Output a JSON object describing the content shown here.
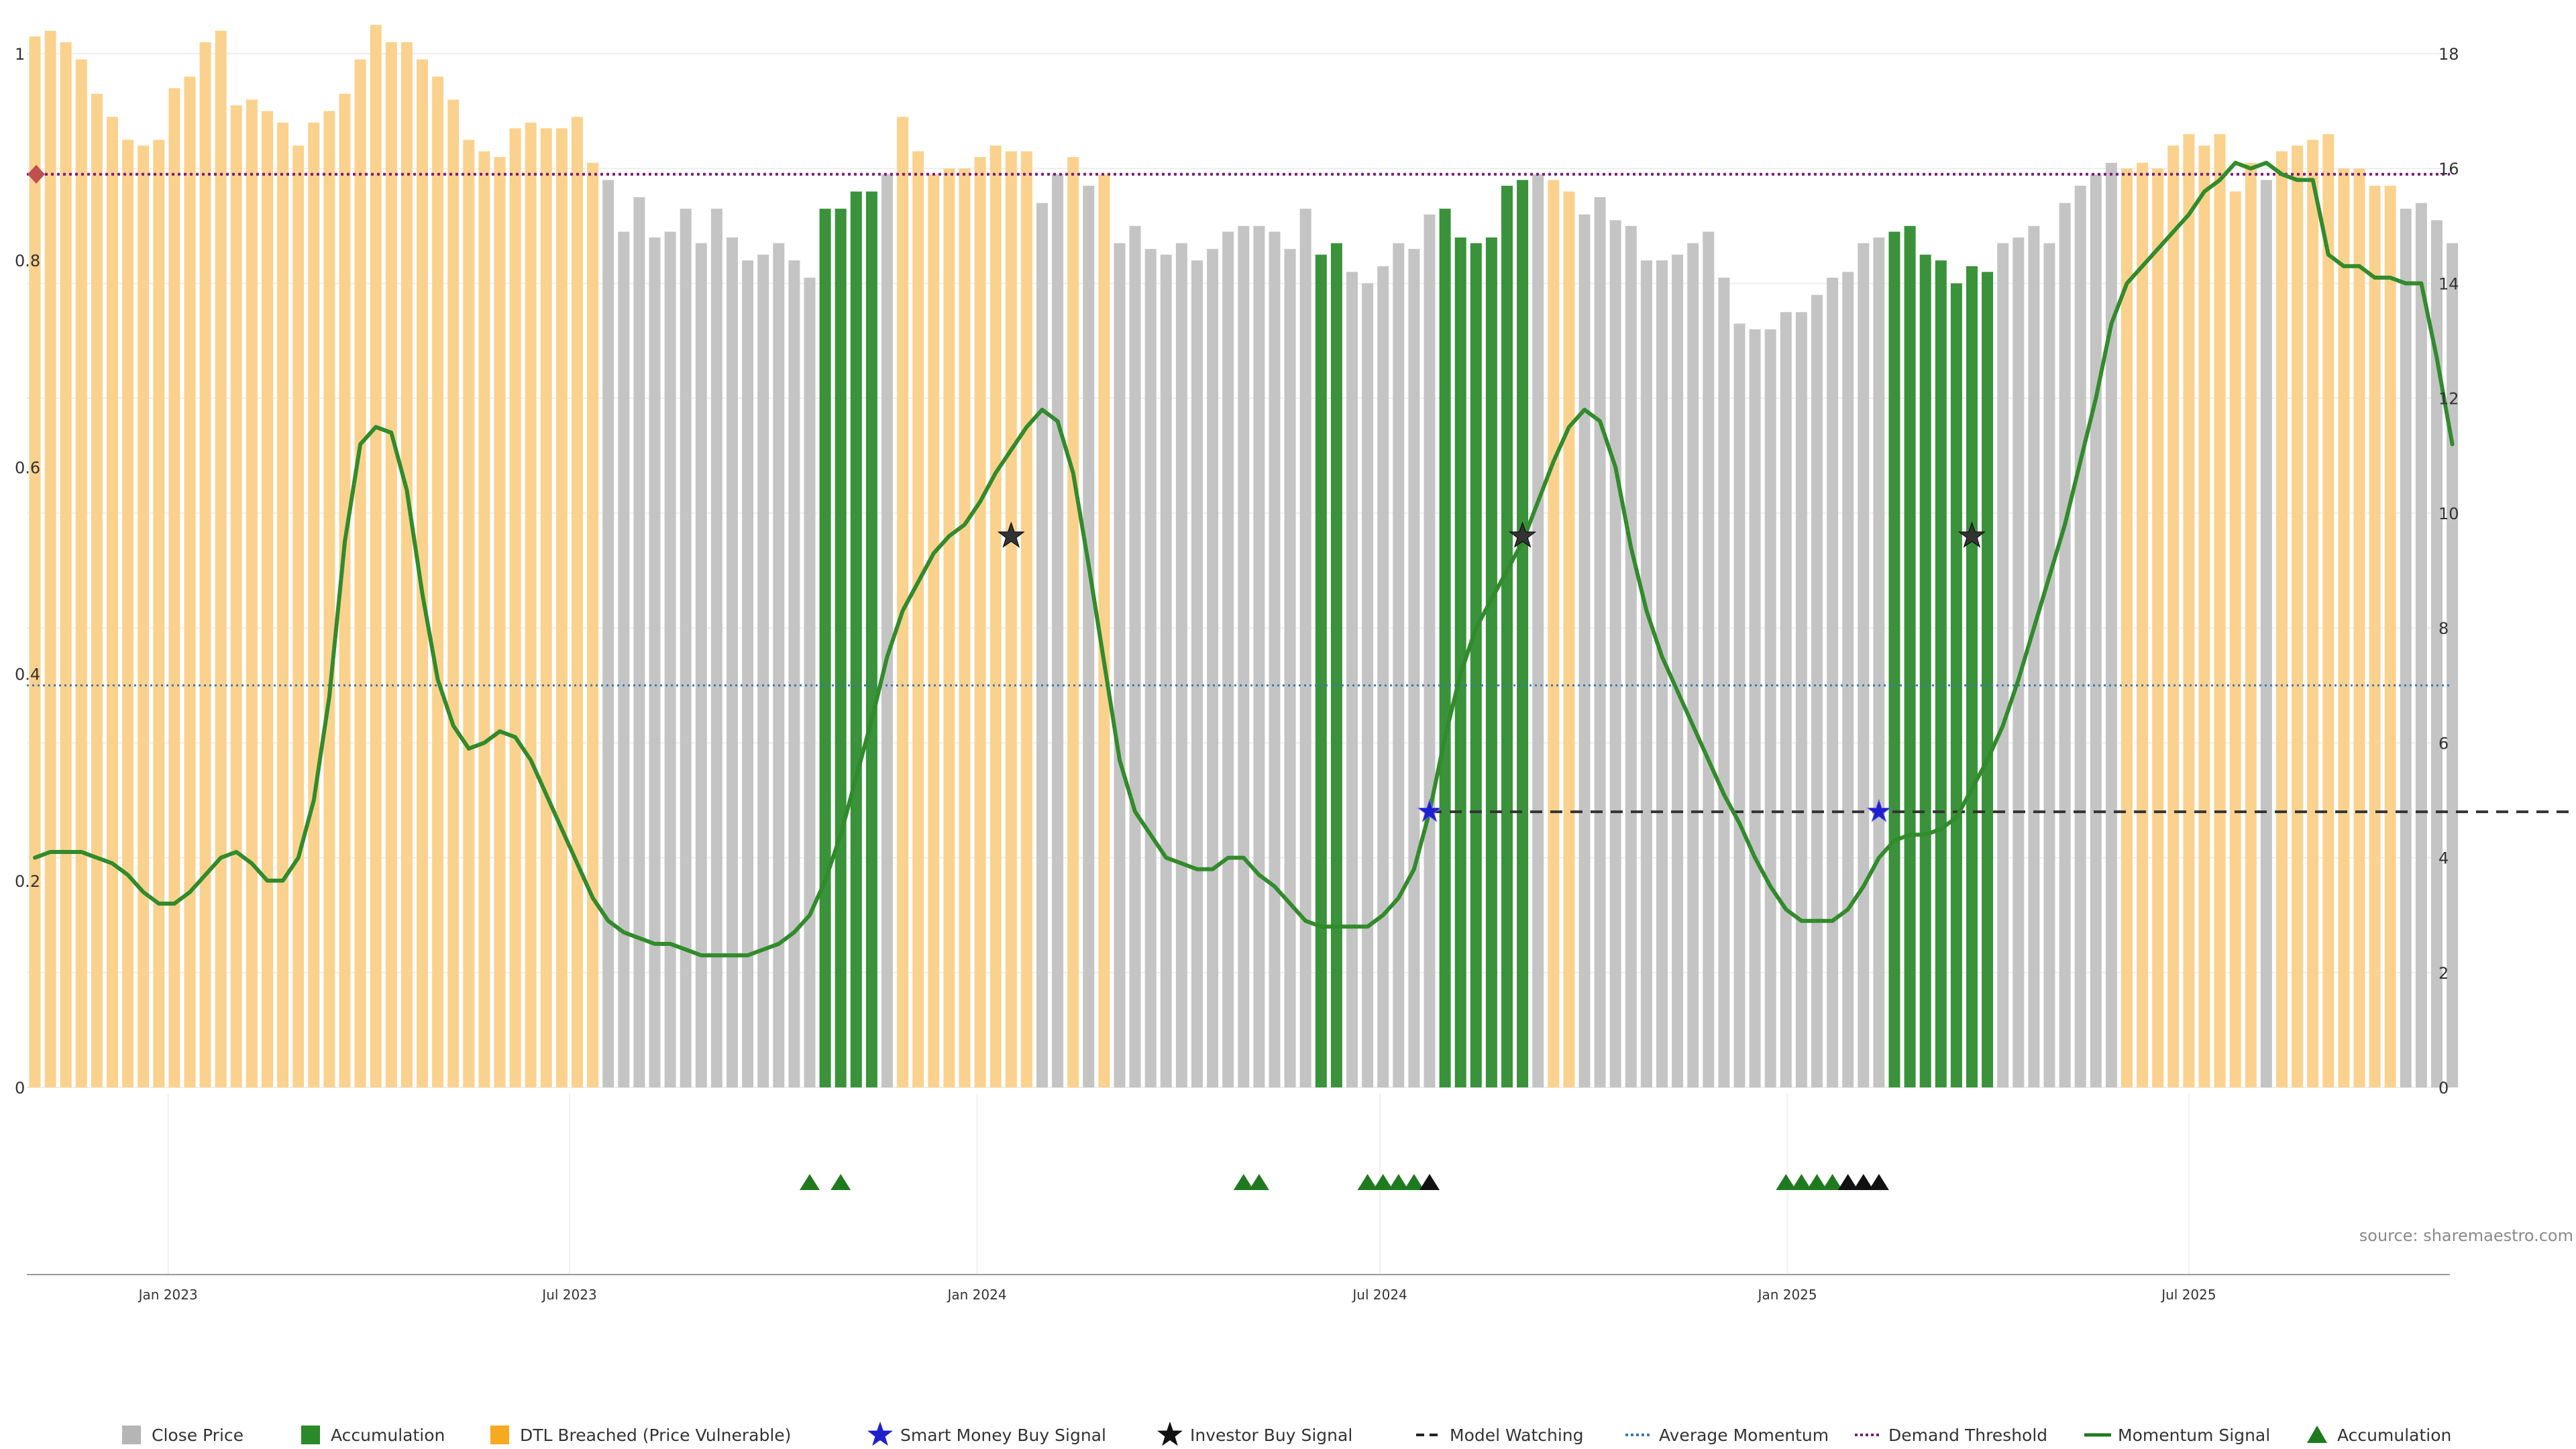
{
  "colors": {
    "close": "#c4c4c4",
    "accumulation": "#3a923a",
    "dtl": "#fad28e",
    "momentum": "#2e8b2e",
    "momentum_highlight": "#6a8a00",
    "avg_momentum": "#3a78b0",
    "demand_threshold": "#7a1a7a",
    "model_watching": "#333333",
    "smart_money": "#1f1fd0",
    "investor": "#333333",
    "triangle_green": "#1f7a1f",
    "triangle_black": "#111111",
    "diamond": "#c0504d",
    "grid": "#eeeeee",
    "axis": "#999999"
  },
  "chart_data": {
    "type": "bar",
    "frequency": "weekly",
    "left_axis": {
      "ylim": [
        0,
        1
      ],
      "ticks": [
        "0",
        "0.2",
        "0.4",
        "0.6",
        "0.8",
        "1"
      ]
    },
    "right_axis": {
      "ylim": [
        0,
        18
      ],
      "ticks": [
        "0",
        "2",
        "4",
        "6",
        "8",
        "10",
        "12",
        "14",
        "16",
        "18"
      ]
    },
    "x_ticks": [
      {
        "label": "Jan 2023",
        "week": 8.6
      },
      {
        "label": "Jul 2023",
        "week": 34.5
      },
      {
        "label": "Jan 2024",
        "week": 60.8
      },
      {
        "label": "Jul 2024",
        "week": 86.8
      },
      {
        "label": "Jan 2025",
        "week": 113.1
      },
      {
        "label": "Jul 2025",
        "week": 139
      }
    ],
    "close_price": [
      18.3,
      18.4,
      18.2,
      17.9,
      17.3,
      16.9,
      16.5,
      16.4,
      16.5,
      17.4,
      17.6,
      18.2,
      18.4,
      17.1,
      17.2,
      17.0,
      16.8,
      16.4,
      16.8,
      17.0,
      17.3,
      17.9,
      18.5,
      18.2,
      18.2,
      17.9,
      17.6,
      17.2,
      16.5,
      16.3,
      16.2,
      16.7,
      16.8,
      16.7,
      16.7,
      16.9,
      16.1,
      15.8,
      14.9,
      15.5,
      14.8,
      14.9,
      15.3,
      14.7,
      15.3,
      14.8,
      14.4,
      14.5,
      14.7,
      14.4,
      14.1,
      15.3,
      15.3,
      15.6,
      15.6,
      15.9,
      16.9,
      16.3,
      15.9,
      16.0,
      16.0,
      16.2,
      16.4,
      16.3,
      16.3,
      15.4,
      15.9,
      16.2,
      15.7,
      15.9,
      14.7,
      15.0,
      14.6,
      14.5,
      14.7,
      14.4,
      14.6,
      14.9,
      15.0,
      15.0,
      14.9,
      14.6,
      15.3,
      14.5,
      14.7,
      14.2,
      14.0,
      14.3,
      14.7,
      14.6,
      15.2,
      15.3,
      14.8,
      14.7,
      14.8,
      15.7,
      15.8,
      15.9,
      15.8,
      15.6,
      15.2,
      15.5,
      15.1,
      15.0,
      14.4,
      14.4,
      14.5,
      14.7,
      14.9,
      14.1,
      13.3,
      13.2,
      13.2,
      13.5,
      13.5,
      13.8,
      14.1,
      14.2,
      14.7,
      14.8,
      14.9,
      15.0,
      14.5,
      14.4,
      14.0,
      14.3,
      14.2,
      14.7,
      14.8,
      15.0,
      14.7,
      15.4,
      15.7,
      15.9,
      16.1,
      16.0,
      16.1,
      16.0,
      16.4,
      16.6,
      16.4,
      16.6,
      15.6,
      16.1,
      15.8,
      16.3,
      16.4,
      16.5,
      16.6,
      16.0,
      16.0,
      15.7,
      15.7,
      15.3,
      15.4,
      15.1,
      14.7
    ],
    "bar_state": "DDDDDDDDDDDDDDDDDDDDDDDDDDDDDDDDDDDDDCCCCCCCCCCCCCCAcAcCDDDDDDDDDCCDCDCCCCCCCCCCCCCAACCCCCCAAAAAACDDCCCCCCCCCCCCCCCCCCCCAAAAAAACCCCCCCCDDDDDDDDDCDDDDDDDDCCCCCC",
    "momentum": [
      4.0,
      4.1,
      4.1,
      4.1,
      4.0,
      3.9,
      3.7,
      3.4,
      3.2,
      3.2,
      3.4,
      3.7,
      4.0,
      4.1,
      3.9,
      3.6,
      3.6,
      4.0,
      5.0,
      6.8,
      9.5,
      11.2,
      11.5,
      11.4,
      10.4,
      8.6,
      7.1,
      6.3,
      5.9,
      6.0,
      6.2,
      6.1,
      5.7,
      5.1,
      4.5,
      3.9,
      3.3,
      2.9,
      2.7,
      2.6,
      2.5,
      2.5,
      2.4,
      2.3,
      2.3,
      2.3,
      2.3,
      2.4,
      2.5,
      2.7,
      3.0,
      3.6,
      4.4,
      5.4,
      6.4,
      7.5,
      8.3,
      8.8,
      9.3,
      9.6,
      9.8,
      10.2,
      10.7,
      11.1,
      11.5,
      11.8,
      11.6,
      10.7,
      9.1,
      7.4,
      5.7,
      4.8,
      4.4,
      4.0,
      3.9,
      3.8,
      3.8,
      4.0,
      4.0,
      3.7,
      3.5,
      3.2,
      2.9,
      2.8,
      2.8,
      2.8,
      2.8,
      3.0,
      3.3,
      3.8,
      4.8,
      6.1,
      7.2,
      8.0,
      8.5,
      9.0,
      9.5,
      10.2,
      10.9,
      11.5,
      11.8,
      11.6,
      10.8,
      9.4,
      8.3,
      7.5,
      6.9,
      6.3,
      5.7,
      5.1,
      4.6,
      4.0,
      3.5,
      3.1,
      2.9,
      2.9,
      2.9,
      3.1,
      3.5,
      4.0,
      4.3,
      4.4,
      4.4,
      4.5,
      4.7,
      5.2,
      5.7,
      6.3,
      7.1,
      8.0,
      8.9,
      9.8,
      10.9,
      12.0,
      13.3,
      14.0,
      14.3,
      14.6,
      14.9,
      15.2,
      15.6,
      15.8,
      16.1,
      16.0,
      16.1,
      15.9,
      15.8,
      15.8,
      14.5,
      14.3,
      14.3,
      14.1,
      14.1,
      14.0,
      14.0,
      12.7,
      11.2
    ],
    "average_momentum": 7.0,
    "demand_threshold": 15.9,
    "model_watching": {
      "value": 4.8,
      "from_week": 90,
      "to_week": 170
    },
    "smart_money_signals": [
      {
        "week": 90,
        "value": 4.8
      },
      {
        "week": 119,
        "value": 4.8
      }
    ],
    "investor_signals": [
      {
        "week": 63,
        "value": 9.6
      },
      {
        "week": 96,
        "value": 9.6
      },
      {
        "week": 125,
        "value": 9.6
      }
    ],
    "accumulation_triangles_green": [
      50,
      52,
      78,
      79,
      86,
      87,
      88,
      89,
      113,
      114,
      115,
      116
    ],
    "accumulation_triangles_black": [
      90,
      117,
      118,
      119
    ],
    "legend": [
      {
        "label": "Close Price",
        "symbol": "square",
        "color": "#b5b5b5"
      },
      {
        "label": "Accumulation",
        "symbol": "square",
        "color": "#2a8a2a"
      },
      {
        "label": "DTL Breached (Price Vulnerable)",
        "symbol": "square",
        "color": "#f5aa1f"
      },
      {
        "label": "Smart Money Buy Signal",
        "symbol": "star",
        "color": "#1f1fd0"
      },
      {
        "label": "Investor Buy Signal",
        "symbol": "star",
        "color": "#111111"
      },
      {
        "label": "Model Watching",
        "symbol": "dash",
        "color": "#222222"
      },
      {
        "label": "Average Momentum",
        "symbol": "dot",
        "color": "#3a78b0"
      },
      {
        "label": "Demand Threshold",
        "symbol": "dot",
        "color": "#7a1a7a"
      },
      {
        "label": "Momentum Signal",
        "symbol": "line",
        "color": "#1f7a1f"
      },
      {
        "label": "Accumulation",
        "symbol": "triangle",
        "color": "#1f7a1f"
      }
    ],
    "source": "source: sharemaestro.com"
  }
}
